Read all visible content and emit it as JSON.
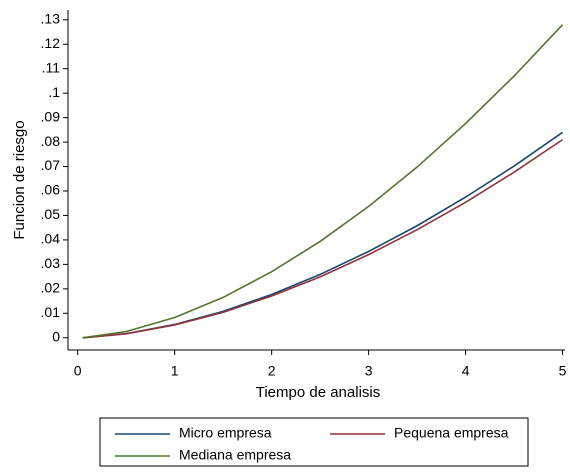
{
  "chart_data": {
    "type": "line",
    "x_label": "Tiempo de analisis",
    "y_label": "Funcion de riesgo",
    "x": [
      0.05,
      0.5,
      1,
      1.5,
      2,
      2.5,
      3,
      3.5,
      4,
      4.5,
      5
    ],
    "series": [
      {
        "name": "Micro empresa",
        "color": "#1a476f",
        "values": [
          0,
          0.00168,
          0.00544,
          0.0108,
          0.0177,
          0.0259,
          0.0353,
          0.0458,
          0.0575,
          0.0702,
          0.084
        ]
      },
      {
        "name": "Pequena empresa",
        "color": "#90353b",
        "values": [
          0,
          0.00162,
          0.00525,
          0.0104,
          0.0171,
          0.0249,
          0.034,
          0.0442,
          0.0554,
          0.0677,
          0.081
        ]
      },
      {
        "name": "Mediana empresa",
        "color": "#55752f",
        "values": [
          0,
          0.00255,
          0.0083,
          0.0165,
          0.027,
          0.0394,
          0.0537,
          0.0698,
          0.0876,
          0.107,
          0.128
        ]
      }
    ],
    "xlim": [
      -0.1,
      5.025
    ],
    "ylim": [
      -0.005,
      0.134
    ],
    "xticks": [
      0,
      1,
      2,
      3,
      4,
      5
    ],
    "yticks": [
      0,
      {
        "value": 0.01,
        "label": ".01"
      },
      {
        "value": 0.02,
        "label": ".02"
      },
      {
        "value": 0.03,
        "label": ".03"
      },
      {
        "value": 0.04,
        "label": ".04"
      },
      {
        "value": 0.05,
        "label": ".05"
      },
      {
        "value": 0.06,
        "label": ".06"
      },
      {
        "value": 0.07,
        "label": ".07"
      },
      {
        "value": 0.08,
        "label": ".08"
      },
      {
        "value": 0.09,
        "label": ".09"
      },
      {
        "value": 0.1,
        "label": ".1"
      },
      {
        "value": 0.11,
        "label": ".11"
      },
      {
        "value": 0.12,
        "label": ".12"
      },
      {
        "value": 0.13,
        "label": ".13"
      }
    ],
    "grid": false,
    "legend": "bottom"
  }
}
